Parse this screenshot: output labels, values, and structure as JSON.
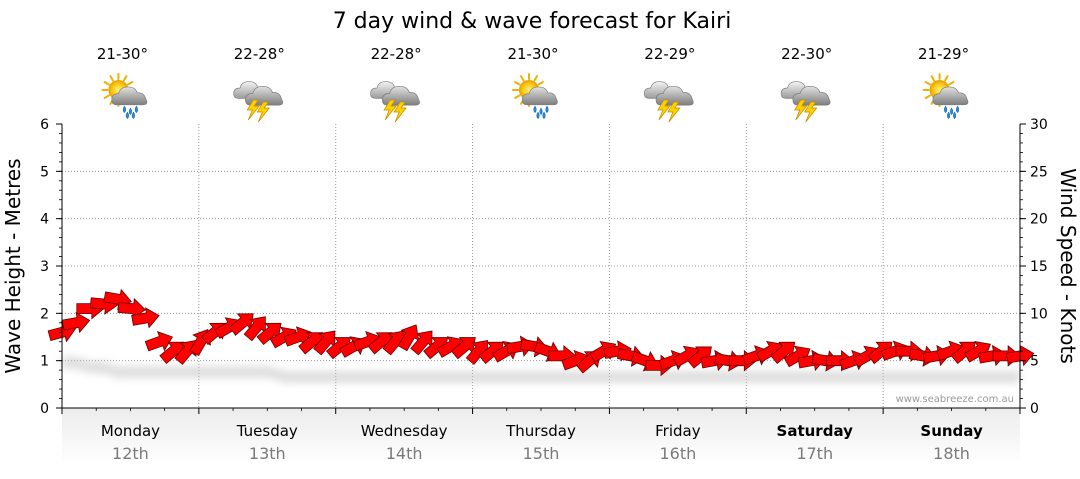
{
  "chart_data": {
    "type": "line",
    "title": "7 day wind & wave forecast for Kairi",
    "ylabel": "Wave Height - Metres",
    "y2label": "Wind Speed - Knots",
    "ylim": [
      0,
      6
    ],
    "y2lim": [
      0,
      30
    ],
    "yticks": [
      "0",
      "1",
      "2",
      "3",
      "4",
      "5",
      "6"
    ],
    "y2ticks": [
      "0",
      "5",
      "10",
      "15",
      "20",
      "25",
      "30"
    ],
    "grid": true,
    "watermark": "www.seabreeze.com.au",
    "days": [
      {
        "day": "Monday",
        "date": "12th",
        "temp": "21-30°",
        "icon": "sun-cloud-rain-icon",
        "bold": false
      },
      {
        "day": "Tuesday",
        "date": "13th",
        "temp": "22-28°",
        "icon": "thunderstorm-icon",
        "bold": false
      },
      {
        "day": "Wednesday",
        "date": "14th",
        "temp": "22-28°",
        "icon": "thunderstorm-icon",
        "bold": false
      },
      {
        "day": "Thursday",
        "date": "15th",
        "temp": "21-30°",
        "icon": "sun-cloud-rain-icon",
        "bold": false
      },
      {
        "day": "Friday",
        "date": "16th",
        "temp": "22-29°",
        "icon": "thunderstorm-icon",
        "bold": false
      },
      {
        "day": "Saturday",
        "date": "17th",
        "temp": "22-30°",
        "icon": "thunderstorm-icon",
        "bold": true
      },
      {
        "day": "Sunday",
        "date": "18th",
        "temp": "21-29°",
        "icon": "sun-cloud-rain-icon",
        "bold": true
      }
    ],
    "wind_knots": [
      8.0,
      9.0,
      10.5,
      11.0,
      11.5,
      10.5,
      9.5,
      7.0,
      6.0,
      6.0,
      7.0,
      8.0,
      8.5,
      9.0,
      8.5,
      8.0,
      7.5,
      7.5,
      7.0,
      7.0,
      6.5,
      6.5,
      7.0,
      7.0,
      7.0,
      7.5,
      7.0,
      6.5,
      6.5,
      6.5,
      6.0,
      6.0,
      6.0,
      6.5,
      6.5,
      6.0,
      5.5,
      5.0,
      5.0,
      6.0,
      6.0,
      5.5,
      5.0,
      4.5,
      5.0,
      5.5,
      5.5,
      5.0,
      5.0,
      5.0,
      5.5,
      6.0,
      6.0,
      5.5,
      5.0,
      5.0,
      5.0,
      5.0,
      5.5,
      6.0,
      6.0,
      6.0,
      5.5,
      5.5,
      6.0,
      6.0,
      6.0,
      5.5,
      5.5,
      5.5
    ],
    "wind_strong_threshold": 12,
    "wave_m": [
      1.0,
      1.0,
      0.9,
      0.9,
      0.8,
      0.8,
      0.8,
      0.8,
      0.8,
      0.8,
      0.8,
      0.8,
      0.8,
      0.8,
      0.8,
      0.8,
      0.7,
      0.7,
      0.7,
      0.7,
      0.7,
      0.7,
      0.7,
      0.7,
      0.7,
      0.7,
      0.7,
      0.7,
      0.7,
      0.7,
      0.7,
      0.7,
      0.7,
      0.7,
      0.7,
      0.7,
      0.7,
      0.7,
      0.7,
      0.7,
      0.7,
      0.7,
      0.7,
      0.7,
      0.7,
      0.7,
      0.7,
      0.7,
      0.7,
      0.7,
      0.7,
      0.7,
      0.7,
      0.7,
      0.7,
      0.7,
      0.7,
      0.7,
      0.7,
      0.7,
      0.7,
      0.7,
      0.7,
      0.7,
      0.7,
      0.7,
      0.7,
      0.7,
      0.7,
      0.7
    ],
    "wind_dir_deg": [
      225,
      230,
      240,
      245,
      250,
      245,
      230,
      220,
      200,
      190,
      180,
      200,
      210,
      200,
      190,
      200,
      210,
      220,
      200,
      190,
      200,
      210,
      220,
      200,
      190,
      180,
      190,
      200,
      210,
      200,
      190,
      200,
      210,
      230,
      250,
      260,
      240,
      220,
      200,
      210,
      230,
      250,
      260,
      240,
      220,
      210,
      200,
      230,
      250,
      240,
      220,
      210,
      200,
      210,
      230,
      250,
      240,
      220,
      210,
      200,
      220,
      240,
      250,
      230,
      220,
      200,
      210,
      230,
      240,
      230
    ]
  }
}
